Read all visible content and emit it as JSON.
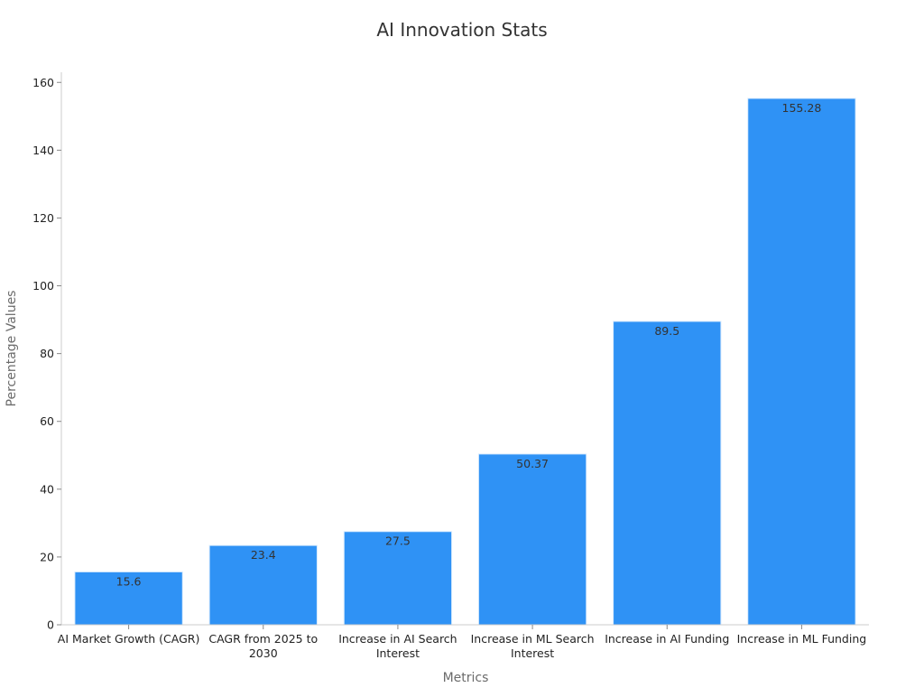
{
  "chart_data": {
    "type": "bar",
    "title": "AI Innovation Stats",
    "xlabel": "Metrics",
    "ylabel": "Percentage Values",
    "categories": [
      [
        "AI Market Growth (CAGR)"
      ],
      [
        "CAGR from 2025 to",
        "2030"
      ],
      [
        "Increase in AI Search",
        "Interest"
      ],
      [
        "Increase in ML Search",
        "Interest"
      ],
      [
        "Increase in AI Funding"
      ],
      [
        "Increase in ML Funding"
      ]
    ],
    "values": [
      15.6,
      23.4,
      27.5,
      50.37,
      89.5,
      155.28
    ],
    "value_labels": [
      "15.6",
      "23.4",
      "27.5",
      "50.37",
      "89.5",
      "155.28"
    ],
    "ylim": [
      0,
      163
    ],
    "yticks": [
      0,
      20,
      40,
      60,
      80,
      100,
      120,
      140,
      160
    ],
    "grid": false,
    "legend": "none",
    "bar_color": "#2f92f5"
  }
}
